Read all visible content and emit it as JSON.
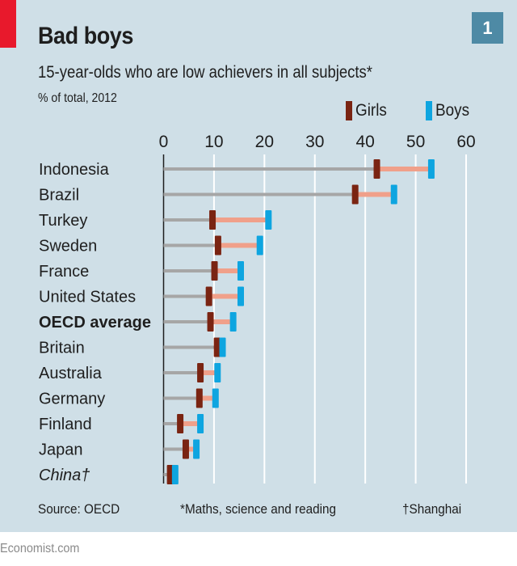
{
  "header": {
    "title": "Bad boys",
    "badge": "1",
    "subtitle": "15-year-olds who are low achievers in all subjects*",
    "unit": "% of total, 2012"
  },
  "colors": {
    "background": "#cfdfe7",
    "accent_tag": "#e8192c",
    "badge": "#4e8aa5",
    "girls": "#7a2412",
    "boys": "#0ea5e0",
    "gap": "#f0a08a",
    "baseline": "#a6a6a6",
    "gridline": "#ffffff"
  },
  "legend": [
    {
      "label": "Girls",
      "color": "#7a2412"
    },
    {
      "label": "Boys",
      "color": "#0ea5e0"
    }
  ],
  "footer": {
    "source": "Source: OECD",
    "note": "*Maths, science and reading",
    "dagger_note": "†Shanghai"
  },
  "brand": "Economist.com",
  "chart_data": {
    "type": "dumbbell",
    "title": "Bad boys",
    "subtitle": "15-year-olds who are low achievers in all subjects*",
    "xlabel": "% of total, 2012",
    "ylabel": "",
    "xlim": [
      0,
      60
    ],
    "xticks": [
      0,
      10,
      20,
      30,
      40,
      50,
      60
    ],
    "grid": true,
    "legend_position": "top-right",
    "categories": [
      "Indonesia",
      "Brazil",
      "Turkey",
      "Sweden",
      "France",
      "United States",
      "OECD average",
      "Britain",
      "Australia",
      "Germany",
      "Finland",
      "Japan",
      "China†"
    ],
    "category_styles": [
      "normal",
      "normal",
      "normal",
      "normal",
      "normal",
      "normal",
      "bold",
      "normal",
      "normal",
      "normal",
      "normal",
      "normal",
      "italic"
    ],
    "series": [
      {
        "name": "Girls",
        "values": [
          42.3,
          38.0,
          9.7,
          10.8,
          10.1,
          9.0,
          9.3,
          10.6,
          7.3,
          7.1,
          3.3,
          4.4,
          1.3
        ]
      },
      {
        "name": "Boys",
        "values": [
          53.1,
          45.7,
          20.8,
          19.1,
          15.3,
          15.3,
          13.8,
          11.7,
          10.7,
          10.3,
          7.3,
          6.5,
          2.3
        ]
      }
    ]
  }
}
